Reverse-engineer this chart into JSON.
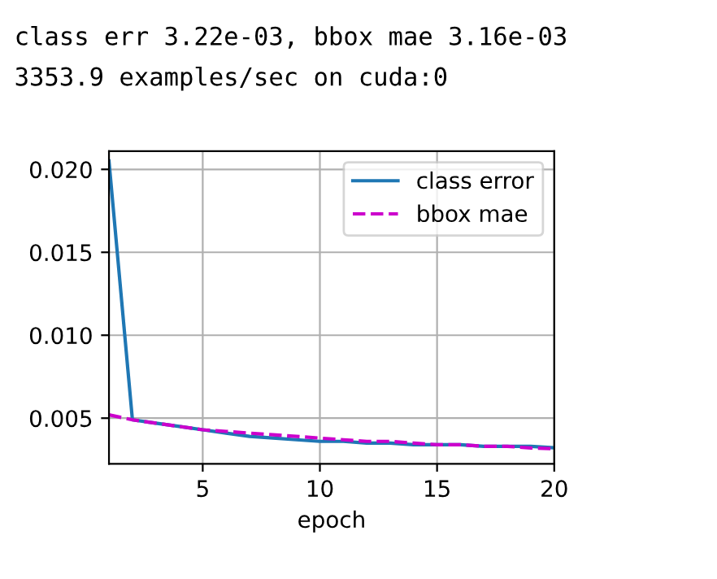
{
  "chart_data": {
    "type": "line",
    "annotations": [
      "class err 3.22e-03, bbox mae 3.16e-03",
      "3353.9 examples/sec on cuda:0"
    ],
    "xlabel": "epoch",
    "x": [
      1,
      2,
      3,
      4,
      5,
      6,
      7,
      8,
      9,
      10,
      11,
      12,
      13,
      14,
      15,
      16,
      17,
      18,
      19,
      20
    ],
    "series": [
      {
        "name": "class error",
        "color": "#1f77b4",
        "line_style": "solid",
        "values": [
          0.0205,
          0.0049,
          0.0047,
          0.0045,
          0.0043,
          0.0041,
          0.0039,
          0.0038,
          0.0037,
          0.0036,
          0.0036,
          0.0035,
          0.0035,
          0.0034,
          0.0034,
          0.0034,
          0.0033,
          0.0033,
          0.0033,
          0.00322
        ]
      },
      {
        "name": "bbox mae",
        "color": "#cc00cc",
        "line_style": "dashed",
        "values": [
          0.0052,
          0.0049,
          0.0047,
          0.0045,
          0.0043,
          0.0042,
          0.0041,
          0.004,
          0.0039,
          0.0038,
          0.0037,
          0.0036,
          0.0036,
          0.0035,
          0.0034,
          0.0034,
          0.0033,
          0.0033,
          0.0032,
          0.00316
        ]
      }
    ],
    "xlim": [
      1,
      20
    ],
    "ylim": [
      0.00225,
      0.0211
    ],
    "xticks": [
      5,
      10,
      15,
      20
    ],
    "yticks": [
      {
        "value": 0.005,
        "label": "0.005"
      },
      {
        "value": 0.01,
        "label": "0.010"
      },
      {
        "value": 0.015,
        "label": "0.015"
      },
      {
        "value": 0.02,
        "label": "0.020"
      }
    ],
    "grid": true,
    "legend": "top right"
  }
}
